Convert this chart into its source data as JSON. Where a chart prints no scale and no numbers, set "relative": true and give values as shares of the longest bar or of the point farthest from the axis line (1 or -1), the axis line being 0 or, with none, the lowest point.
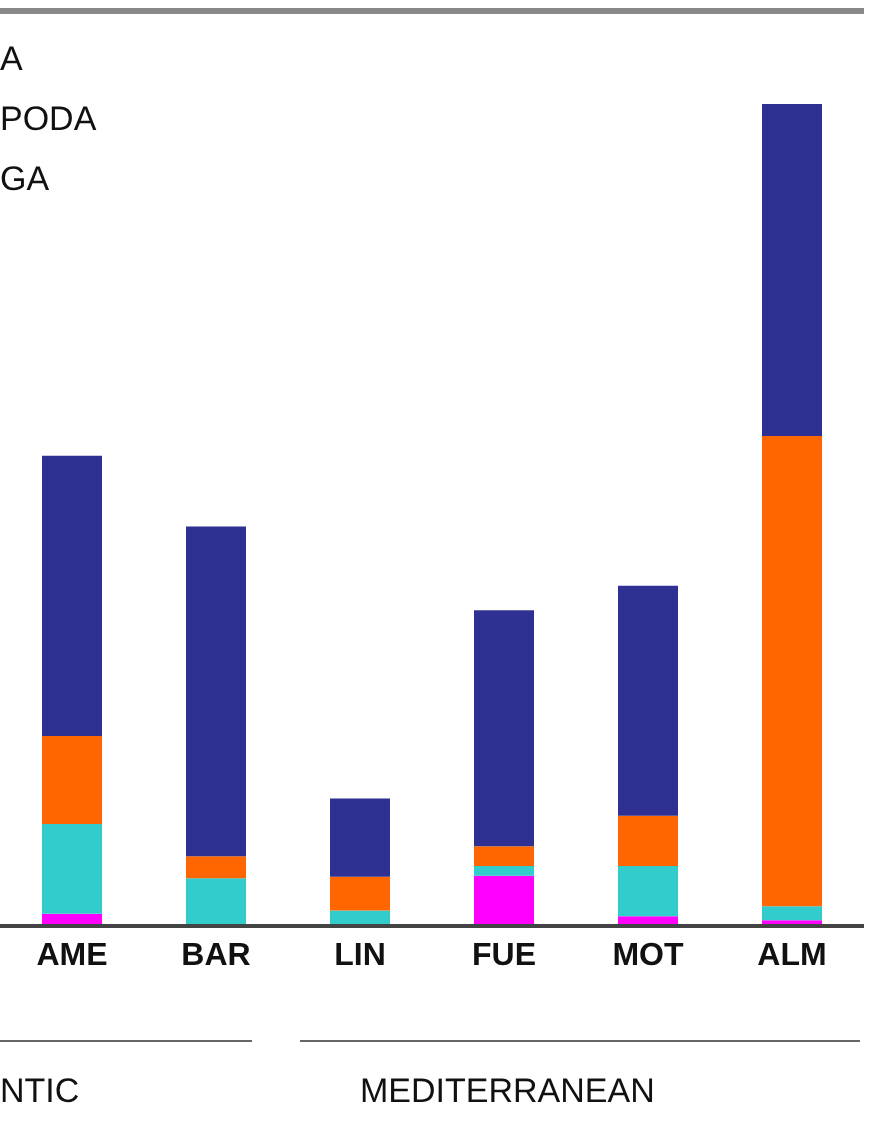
{
  "chart_data": {
    "type": "bar",
    "stacked": true,
    "relative": true,
    "categories": [
      "AME",
      "BAR",
      "LIN",
      "FUE",
      "MOT",
      "ALM"
    ],
    "series": [
      {
        "color": "#ff00ff",
        "values": [
          0.015,
          0,
          0,
          0.061,
          0.012,
          0.007
        ]
      },
      {
        "color": "#33cccc",
        "values": [
          0.109,
          0.058,
          0.019,
          0.012,
          0.061,
          0.017
        ]
      },
      {
        "color": "#ff6600",
        "values": [
          0.107,
          0.027,
          0.041,
          0.024,
          0.061,
          0.572
        ]
      },
      {
        "color": "#2e3192",
        "values": [
          0.341,
          0.401,
          0.095,
          0.287,
          0.28,
          0.404
        ]
      }
    ],
    "annotations": [
      "A",
      "PODA",
      "GA",
      "NTIC",
      "MEDITERRANEAN"
    ]
  }
}
